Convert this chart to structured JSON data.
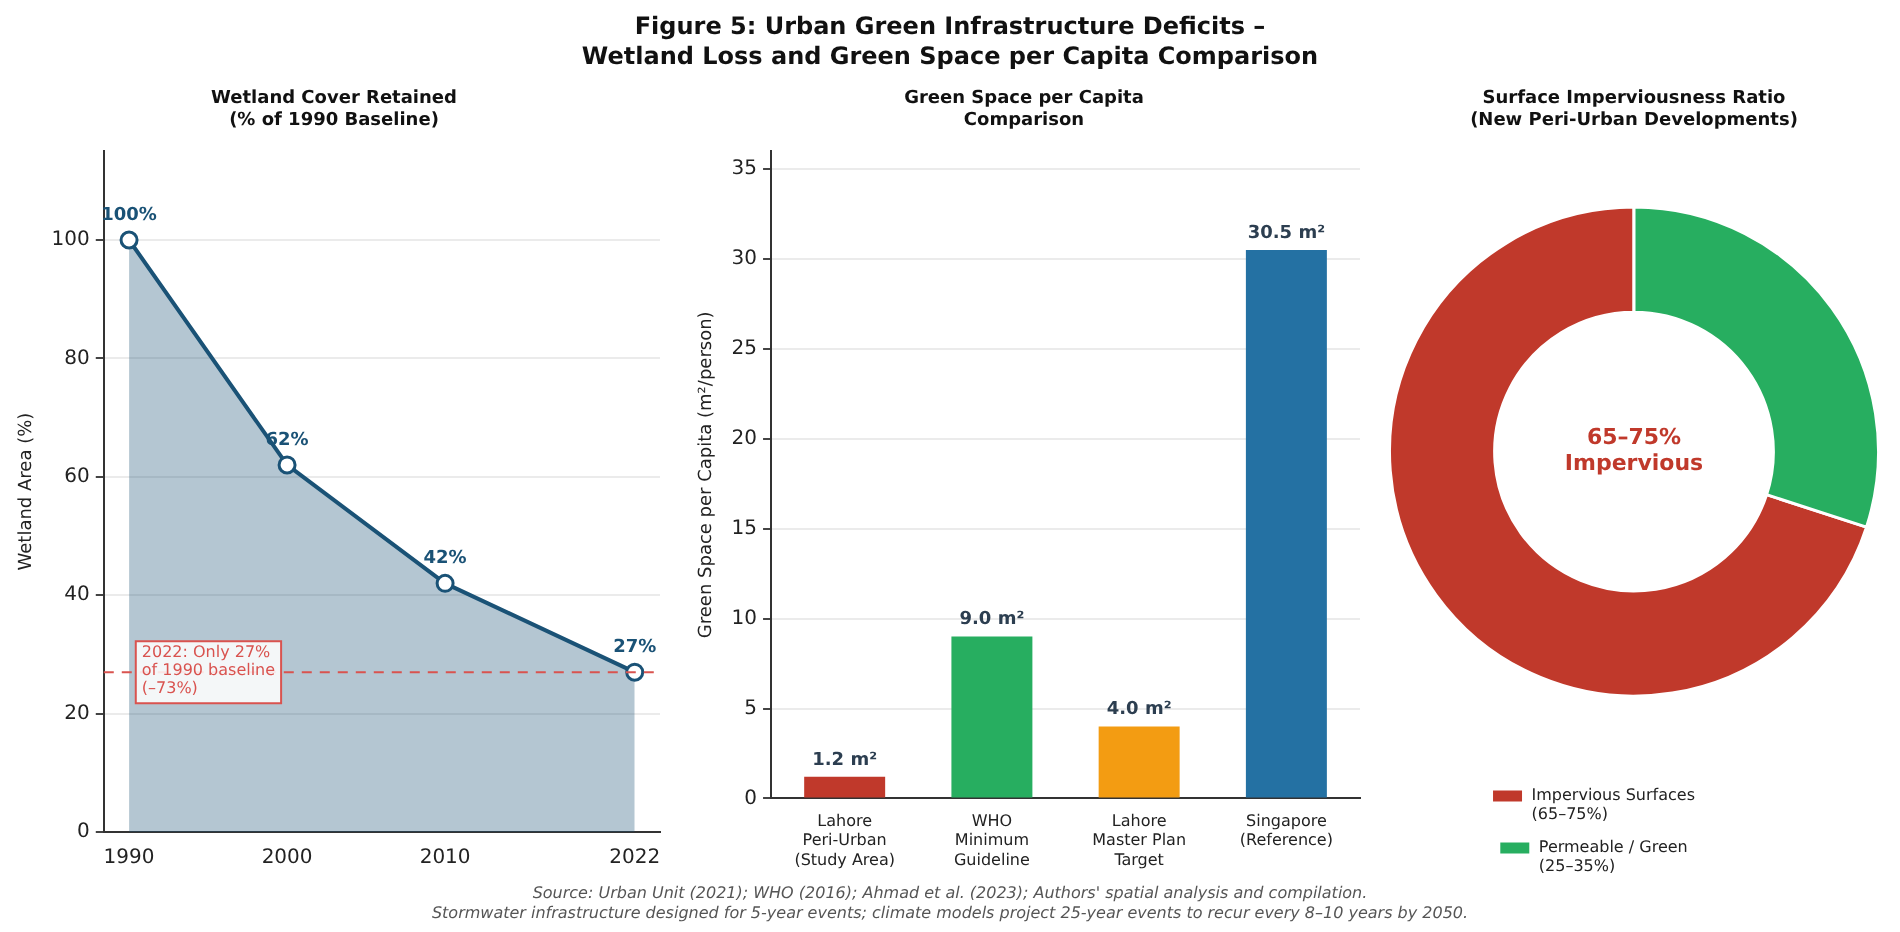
{
  "chart_data": [
    {
      "type": "other",
      "title": "Figure 5: Urban Green Infrastructure Deficits –\nWetland Loss and Green Space per Capita Comparison",
      "annotations": [
        "Source: Urban Unit (2021); WHO (2016); Ahmad et al. (2023); Authors' spatial analysis and compilation.",
        "Stormwater infrastructure designed for 5-year events; climate models project 25-year events to recur every 8–10 years by 2050."
      ]
    },
    {
      "type": "area",
      "title": "Wetland Cover Retained\n(% of 1990 Baseline)",
      "ylabel": "Wetland Area (%)",
      "x": [
        1990,
        2000,
        2010,
        2022
      ],
      "values": [
        100,
        62,
        42,
        27
      ],
      "value_labels": [
        "100%",
        "62%",
        "42%",
        "27%"
      ],
      "color": "#1a5276",
      "marker": "circle",
      "xlim": [
        1988.4,
        2023.6
      ],
      "xticks": [
        1990,
        2000,
        2010,
        2022
      ],
      "ylim": [
        0,
        115
      ],
      "yticks": [
        0,
        20,
        40,
        60,
        80,
        100
      ],
      "grid": "y",
      "ref_lines": [
        {
          "axis": "y",
          "value": 27,
          "label": "2022: Only 27%\nof 1990 baseline\n(–73%)",
          "color": "#d9534f",
          "line_style": "dashed"
        }
      ]
    },
    {
      "type": "bar",
      "title": "Green Space per Capita\nComparison",
      "ylabel": "Green Space per Capita (m²/person)",
      "categories": [
        "Lahore\nPeri-Urban\n(Study Area)",
        "WHO\nMinimum\nGuideline",
        "Lahore\nMaster Plan\nTarget",
        "Singapore\n(Reference)"
      ],
      "values": [
        1.2,
        9.0,
        4.0,
        30.5
      ],
      "colors": [
        "#c0392b",
        "#27ae60",
        "#f39c12",
        "#2471a3"
      ],
      "value_labels": [
        "1.2 m²",
        "9.0 m²",
        "4.0 m²",
        "30.5 m²"
      ],
      "ylim": [
        0,
        36
      ],
      "yticks": [
        0,
        5,
        10,
        15,
        20,
        25,
        30,
        35
      ],
      "grid": "y"
    },
    {
      "type": "donut",
      "title": "Surface Imperviousness Ratio\n(New Peri-Urban Developments)",
      "categories": [
        "Impervious Surfaces\n(65–75%)",
        "Permeable / Green\n(25–35%)"
      ],
      "values": [
        70,
        30
      ],
      "colors": [
        "#c0392b",
        "#27ae60"
      ],
      "legend": "bottom",
      "annotations": [
        "65–75%\nImpervious"
      ]
    }
  ]
}
